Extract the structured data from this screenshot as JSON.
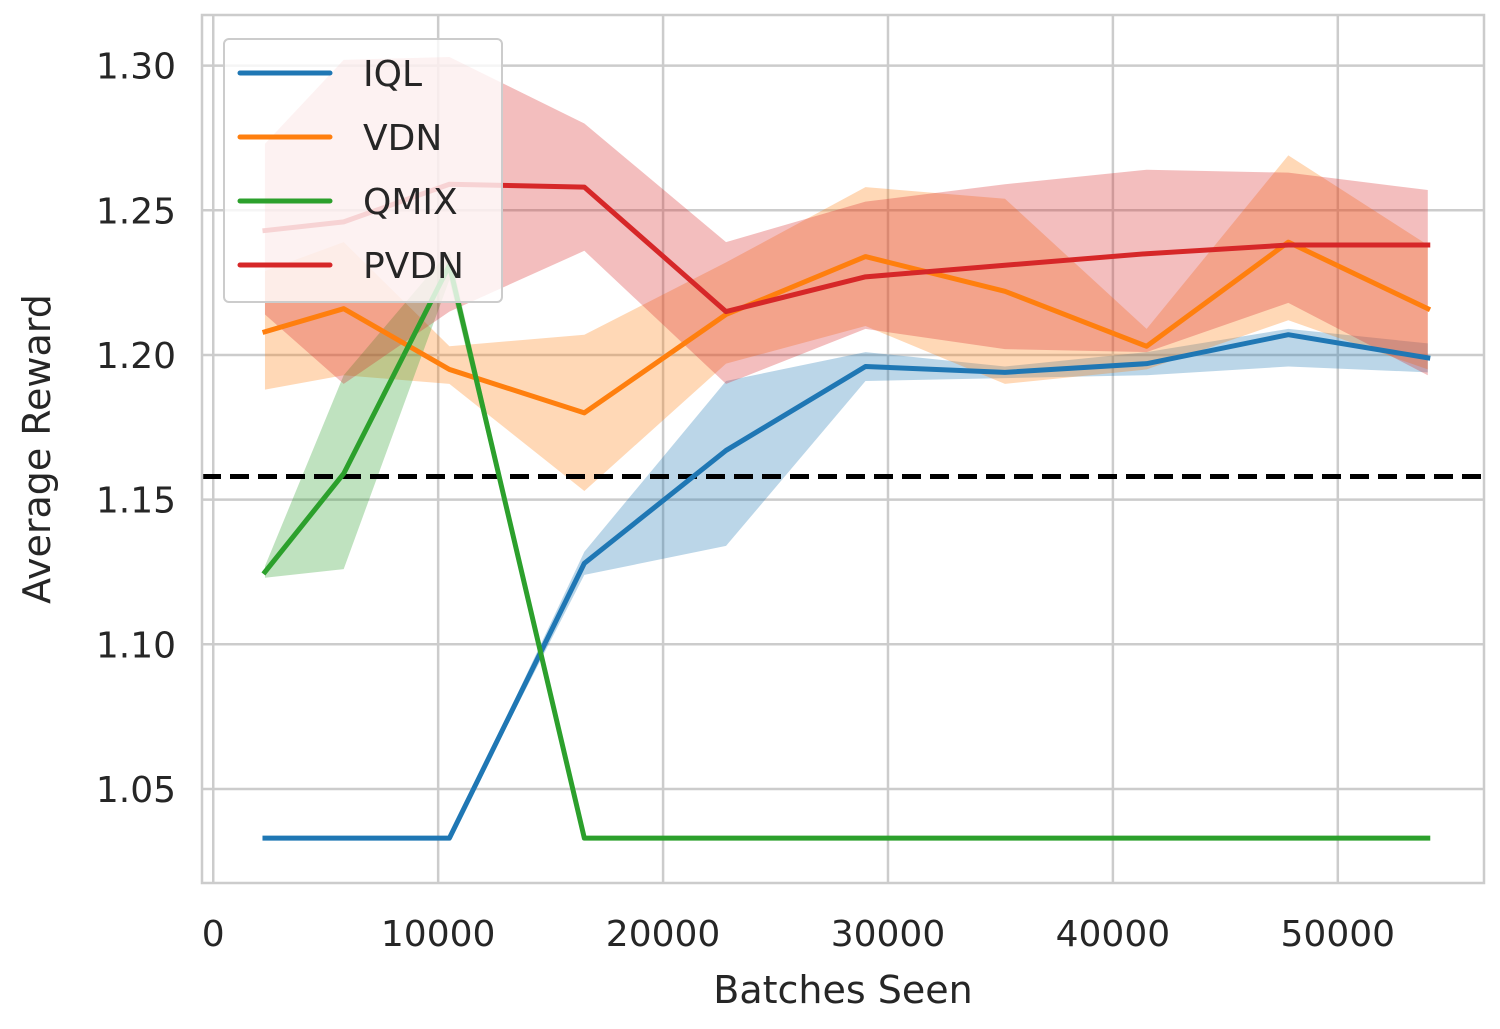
{
  "chart_data": {
    "type": "line",
    "title": "",
    "xlabel": "Batches Seen",
    "ylabel": "Average Reward",
    "xlim": [
      -500,
      56500
    ],
    "ylim": [
      1.0175,
      1.3175
    ],
    "xticks": [
      0,
      10000,
      20000,
      30000,
      40000,
      50000
    ],
    "xtick_labels": [
      "0",
      "10000",
      "20000",
      "30000",
      "40000",
      "50000"
    ],
    "yticks": [
      1.05,
      1.1,
      1.15,
      1.2,
      1.25,
      1.3
    ],
    "ytick_labels": [
      "1.05",
      "1.10",
      "1.15",
      "1.20",
      "1.25",
      "1.30"
    ],
    "grid": true,
    "legend_position": "top-left",
    "x": [
      2300,
      5800,
      10500,
      16500,
      22800,
      29000,
      35200,
      41500,
      47800,
      54000
    ],
    "baseline": {
      "value": 1.158,
      "style": "dashed",
      "color": "#000000"
    },
    "series": [
      {
        "name": "IQL",
        "color": "#1f77b4",
        "values": [
          1.033,
          1.033,
          1.033,
          1.128,
          1.167,
          1.196,
          1.194,
          1.197,
          1.207,
          1.199
        ],
        "lower": [
          1.033,
          1.033,
          1.033,
          1.124,
          1.134,
          1.191,
          1.192,
          1.193,
          1.196,
          1.194
        ],
        "upper": [
          1.033,
          1.033,
          1.033,
          1.132,
          1.191,
          1.201,
          1.196,
          1.201,
          1.209,
          1.204
        ]
      },
      {
        "name": "VDN",
        "color": "#ff7f0e",
        "values": [
          1.208,
          1.216,
          1.195,
          1.18,
          1.214,
          1.234,
          1.222,
          1.203,
          1.239,
          1.216
        ],
        "lower": [
          1.188,
          1.193,
          1.19,
          1.153,
          1.197,
          1.21,
          1.19,
          1.195,
          1.212,
          1.195
        ],
        "upper": [
          1.229,
          1.239,
          1.203,
          1.207,
          1.232,
          1.258,
          1.254,
          1.209,
          1.269,
          1.238
        ]
      },
      {
        "name": "QMIX",
        "color": "#2ca02c",
        "values": [
          1.125,
          1.159,
          1.231,
          1.033,
          1.033,
          1.033,
          1.033,
          1.033,
          1.033,
          1.033
        ],
        "lower": [
          1.123,
          1.126,
          1.226,
          1.033,
          1.033,
          1.033,
          1.033,
          1.033,
          1.033,
          1.033
        ],
        "upper": [
          1.127,
          1.193,
          1.236,
          1.033,
          1.033,
          1.033,
          1.033,
          1.033,
          1.033,
          1.033
        ]
      },
      {
        "name": "PVDN",
        "color": "#d62728",
        "values": [
          1.243,
          1.246,
          1.259,
          1.258,
          1.215,
          1.227,
          1.231,
          1.235,
          1.238,
          1.238
        ],
        "lower": [
          1.214,
          1.19,
          1.215,
          1.236,
          1.19,
          1.209,
          1.202,
          1.201,
          1.218,
          1.193
        ],
        "upper": [
          1.273,
          1.302,
          1.303,
          1.28,
          1.239,
          1.253,
          1.259,
          1.264,
          1.263,
          1.257
        ]
      }
    ]
  }
}
